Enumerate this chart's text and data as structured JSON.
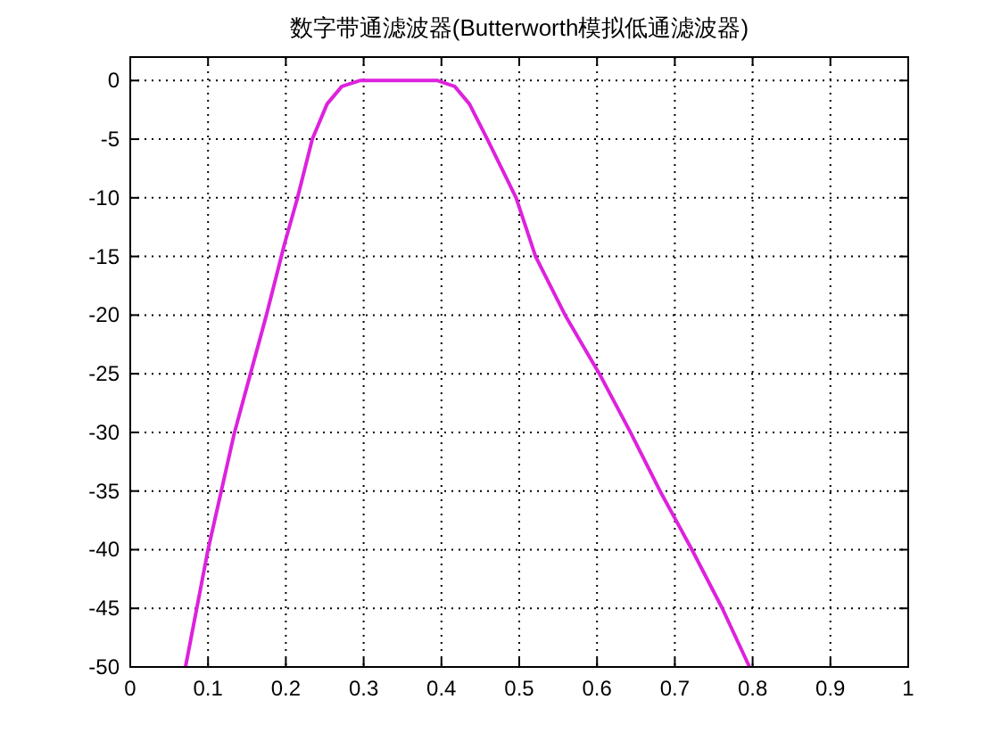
{
  "chart_data": {
    "type": "line",
    "title": "数字带通滤波器(Butterworth模拟低通滤波器)",
    "series": [
      {
        "color": "#dd22dd",
        "x": [
          0.071,
          0.1,
          0.134,
          0.175,
          0.198,
          0.215,
          0.234,
          0.253,
          0.272,
          0.295,
          0.35,
          0.395,
          0.417,
          0.436,
          0.459,
          0.496,
          0.521,
          0.559,
          0.603,
          0.643,
          0.681,
          0.722,
          0.761,
          0.796
        ],
        "values": [
          -50,
          -40,
          -30,
          -20,
          -14,
          -10,
          -5,
          -2,
          -0.5,
          0,
          0,
          0,
          -0.5,
          -2,
          -5,
          -10,
          -15,
          -20,
          -25,
          -30,
          -35,
          -40,
          -45,
          -50
        ]
      }
    ],
    "xlim": [
      0,
      1
    ],
    "xticks": [
      0,
      0.1,
      0.2,
      0.3,
      0.4,
      0.5,
      0.6,
      0.7,
      0.8,
      0.9,
      1
    ],
    "ylim": [
      -50,
      2
    ],
    "yticks": [
      -50,
      -45,
      -40,
      -35,
      -30,
      -25,
      -20,
      -15,
      -10,
      -5,
      0
    ],
    "grid": true,
    "line_style": "solid"
  }
}
